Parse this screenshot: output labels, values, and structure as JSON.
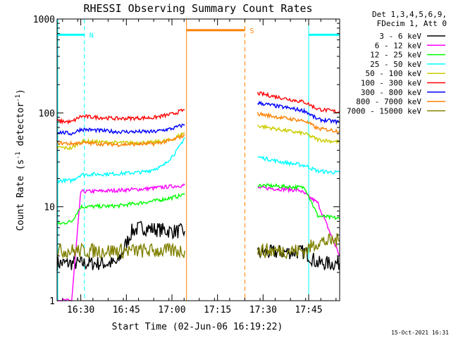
{
  "chart_data": {
    "type": "line",
    "title": "RHESSI Observing Summary Count Rates",
    "xlabel": "Start Time (02-Jun-06 16:19:22)",
    "ylabel": "Count Rate (s",
    "ylabel_sup1": "-1",
    "ylabel_mid": " detector",
    "ylabel_sup2": "-1",
    "ylabel_end": ")",
    "y_scale": "log",
    "ylim": [
      1,
      1000
    ],
    "xlim_minutes": [
      16.37,
      17.92
    ],
    "x_ticks": [
      {
        "m": 16.5,
        "label": "16:30"
      },
      {
        "m": 16.75,
        "label": "16:45"
      },
      {
        "m": 17.0,
        "label": "17:00"
      },
      {
        "m": 17.25,
        "label": "17:15"
      },
      {
        "m": 17.5,
        "label": "17:30"
      },
      {
        "m": 17.75,
        "label": "17:45"
      }
    ],
    "y_ticks": [
      {
        "v": 1,
        "label": "1"
      },
      {
        "v": 10,
        "label": "10"
      },
      {
        "v": 100,
        "label": "100"
      },
      {
        "v": 1000,
        "label": "1000"
      }
    ],
    "legend_header": [
      "Det 1,3,4,5,6,9,",
      "FDecim 1, Att 0"
    ],
    "legend_position": "right",
    "timestamp": "15-Oct-2021 16:31",
    "data_gap": [
      17.07,
      17.47
    ],
    "series": [
      {
        "name": "3 - 6 keV",
        "color": "#000000",
        "segments": [
          [
            [
              16.37,
              2.5
            ],
            [
              16.5,
              2.5
            ],
            [
              16.7,
              2.5
            ],
            [
              16.78,
              5.5
            ],
            [
              16.83,
              6.0
            ],
            [
              17.0,
              5.5
            ],
            [
              17.07,
              5.5
            ]
          ],
          [
            [
              17.47,
              3.2
            ],
            [
              17.6,
              3.3
            ],
            [
              17.73,
              3.3
            ],
            [
              17.8,
              2.5
            ],
            [
              17.92,
              2.5
            ]
          ]
        ]
      },
      {
        "name": "6 - 12 keV",
        "color": "#ff00ff",
        "segments": [
          [
            [
              16.37,
              1.0
            ],
            [
              16.45,
              1.0
            ],
            [
              16.5,
              14.5
            ],
            [
              16.65,
              14.8
            ],
            [
              16.85,
              15.5
            ],
            [
              17.0,
              16.5
            ],
            [
              17.07,
              17.0
            ]
          ],
          [
            [
              17.47,
              16.0
            ],
            [
              17.7,
              15.0
            ],
            [
              17.8,
              11.0
            ],
            [
              17.92,
              3.0
            ]
          ]
        ]
      },
      {
        "name": "12 - 25 keV",
        "color": "#00ff00",
        "segments": [
          [
            [
              16.37,
              6.5
            ],
            [
              16.45,
              7.0
            ],
            [
              16.5,
              10.0
            ],
            [
              16.7,
              10.2
            ],
            [
              16.9,
              11.5
            ],
            [
              17.0,
              12.5
            ],
            [
              17.07,
              13.5
            ]
          ],
          [
            [
              17.47,
              17.0
            ],
            [
              17.6,
              16.5
            ],
            [
              17.73,
              16.0
            ],
            [
              17.8,
              8.0
            ],
            [
              17.92,
              7.5
            ]
          ]
        ]
      },
      {
        "name": "25 - 50 keV",
        "color": "#00ffff",
        "segments": [
          [
            [
              16.37,
              19.0
            ],
            [
              16.45,
              19.0
            ],
            [
              16.5,
              22.0
            ],
            [
              16.7,
              22.5
            ],
            [
              16.85,
              23.5
            ],
            [
              16.95,
              27.0
            ],
            [
              17.03,
              40.0
            ],
            [
              17.07,
              55.0
            ]
          ],
          [
            [
              17.47,
              34.0
            ],
            [
              17.6,
              30.0
            ],
            [
              17.73,
              27.5
            ],
            [
              17.8,
              24.0
            ],
            [
              17.92,
              23.0
            ]
          ]
        ]
      },
      {
        "name": "50 - 100 keV",
        "color": "#cccc00",
        "segments": [
          [
            [
              16.37,
              43.0
            ],
            [
              16.45,
              42.0
            ],
            [
              16.5,
              50.0
            ],
            [
              16.7,
              48.0
            ],
            [
              16.9,
              48.5
            ],
            [
              17.0,
              52.0
            ],
            [
              17.07,
              62.0
            ]
          ],
          [
            [
              17.47,
              73.0
            ],
            [
              17.6,
              66.0
            ],
            [
              17.73,
              60.0
            ],
            [
              17.8,
              52.0
            ],
            [
              17.92,
              49.0
            ]
          ]
        ]
      },
      {
        "name": "100 - 300 keV",
        "color": "#ff0000",
        "segments": [
          [
            [
              16.37,
              82.0
            ],
            [
              16.45,
              80.0
            ],
            [
              16.5,
              92.0
            ],
            [
              16.7,
              87.0
            ],
            [
              16.9,
              89.0
            ],
            [
              17.0,
              97.0
            ],
            [
              17.07,
              108.0
            ]
          ],
          [
            [
              17.47,
              162.0
            ],
            [
              17.6,
              145.0
            ],
            [
              17.73,
              130.0
            ],
            [
              17.8,
              110.0
            ],
            [
              17.92,
              102.0
            ]
          ]
        ]
      },
      {
        "name": "300 - 800 keV",
        "color": "#0000ff",
        "segments": [
          [
            [
              16.37,
              63.0
            ],
            [
              16.45,
              60.0
            ],
            [
              16.5,
              67.0
            ],
            [
              16.7,
              63.0
            ],
            [
              16.9,
              63.0
            ],
            [
              17.0,
              68.0
            ],
            [
              17.07,
              75.0
            ]
          ],
          [
            [
              17.47,
              128.0
            ],
            [
              17.6,
              116.0
            ],
            [
              17.73,
              105.0
            ],
            [
              17.8,
              85.0
            ],
            [
              17.92,
              80.0
            ]
          ]
        ]
      },
      {
        "name": "800 - 7000 keV",
        "color": "#ff8000",
        "segments": [
          [
            [
              16.37,
              48.0
            ],
            [
              16.45,
              47.0
            ],
            [
              16.5,
              48.0
            ],
            [
              16.7,
              46.0
            ],
            [
              16.9,
              47.0
            ],
            [
              17.0,
              51.0
            ],
            [
              17.07,
              58.0
            ]
          ],
          [
            [
              17.47,
              98.0
            ],
            [
              17.6,
              89.0
            ],
            [
              17.73,
              82.0
            ],
            [
              17.8,
              68.0
            ],
            [
              17.92,
              64.0
            ]
          ]
        ]
      },
      {
        "name": "7000 - 15000 keV",
        "color": "#808000",
        "segments": [
          [
            [
              16.37,
              3.4
            ],
            [
              16.5,
              3.4
            ],
            [
              16.6,
              3.4
            ],
            [
              16.75,
              3.4
            ],
            [
              17.0,
              3.4
            ],
            [
              17.07,
              3.4
            ]
          ],
          [
            [
              17.47,
              3.4
            ],
            [
              17.73,
              3.4
            ],
            [
              17.8,
              4.2
            ],
            [
              17.92,
              4.4
            ]
          ]
        ]
      }
    ],
    "markers": [
      {
        "label": "N",
        "color": "#00ffff",
        "start": 16.37,
        "end": 16.52,
        "level": 680
      },
      {
        "label": "",
        "color": "#00ffff",
        "start": 17.75,
        "end": 17.92,
        "level": 680
      },
      {
        "label": "S",
        "color": "#ff8000",
        "start": 17.08,
        "end": 17.4,
        "level": 760
      }
    ]
  }
}
